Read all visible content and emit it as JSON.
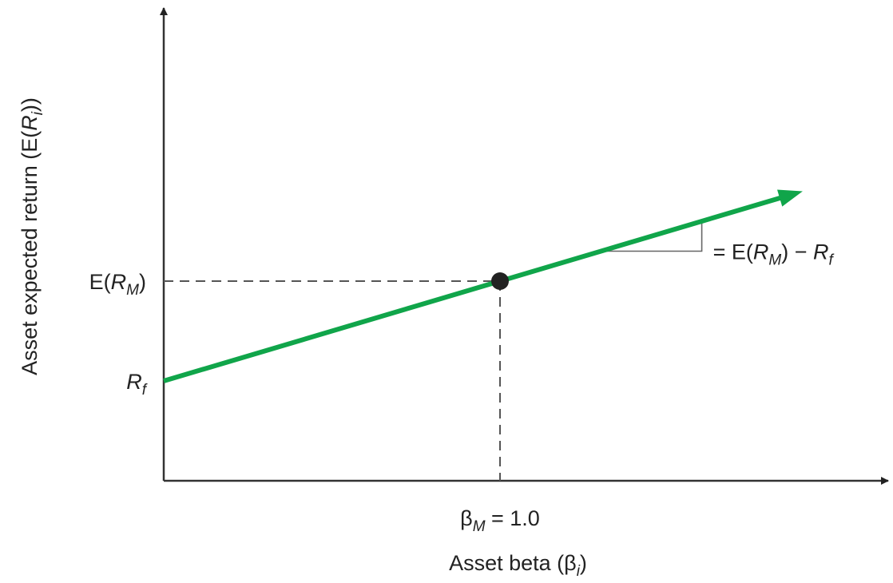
{
  "chart_data": {
    "type": "line",
    "title": "",
    "xlabel": {
      "text": "Asset beta (β",
      "sub": "i",
      "close": ")"
    },
    "ylabel": {
      "text": "Asset expected return (E(",
      "var": "R",
      "sub": "i",
      "close": "))"
    },
    "xlim": [
      0,
      1.9
    ],
    "ylim": [
      0,
      1.9
    ],
    "grid": false,
    "legend": "none",
    "line_color": "#10a54a",
    "series": [
      {
        "x": [
          0,
          1.0,
          1.9
        ],
        "y": [
          0.5,
          1.0,
          1.45
        ],
        "arrow_end": true
      }
    ],
    "market_point": {
      "x": 1.0,
      "y": 1.0
    },
    "y_ticks": [
      {
        "y": 1.0,
        "pre": "E(",
        "var": "R",
        "sub": "M",
        "post": ")"
      },
      {
        "y": 0.5,
        "pre": "",
        "var": "R",
        "sub": "f",
        "post": ""
      }
    ],
    "x_ticks": [
      {
        "x": 1.0,
        "sym": "β",
        "sub": "M",
        "rest": " = 1.0"
      }
    ],
    "slope_annotation": {
      "x_start": 1.3,
      "x_end": 1.6,
      "parts": [
        {
          "t": "= E(",
          "style": "normal"
        },
        {
          "t": "R",
          "style": "italic"
        },
        {
          "t": "M",
          "style": "sub"
        },
        {
          "t": ") − ",
          "style": "normal"
        },
        {
          "t": "R",
          "style": "italic"
        },
        {
          "t": "f",
          "style": "sub"
        }
      ]
    }
  }
}
